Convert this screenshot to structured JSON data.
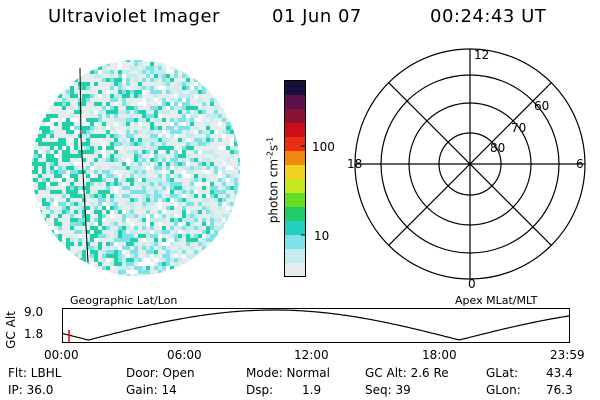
{
  "header": {
    "instrument": "Ultraviolet Imager",
    "date": "01 Jun 07",
    "time": "00:24:43 UT"
  },
  "colorbar": {
    "unit_label": "photon cm",
    "unit_exp1": "-2",
    "unit_s": "s",
    "unit_exp2": "-1",
    "ticks": [
      "100",
      "10"
    ],
    "colors": [
      "#1a0f3a",
      "#5a0f4a",
      "#8c1232",
      "#cc0f1a",
      "#e83010",
      "#f08810",
      "#f0d020",
      "#c8e820",
      "#66dd22",
      "#22cc66",
      "#22d0c0",
      "#7ee2e8",
      "#c2ecee",
      "#e6eded"
    ]
  },
  "polar": {
    "top_label": "12",
    "bottom_label": "0",
    "left_label": "18",
    "right_label": "6",
    "rings": [
      "60",
      "70",
      "80"
    ]
  },
  "captions": {
    "left": "Geographic Lat/Lon",
    "right": "Apex MLat/MLT"
  },
  "altplot": {
    "ylabel": "GC Alt",
    "yticks": [
      "9.0",
      "1.8"
    ],
    "xticks": [
      "00:00",
      "06:00",
      "12:00",
      "18:00",
      "23:59"
    ]
  },
  "footer": {
    "flt": "Flt: LBHL",
    "ip": "IP: 36.0",
    "door": "Door: Open",
    "gain": "Gain: 14",
    "mode": "Mode: Normal",
    "dsp_label": "Dsp:",
    "dsp_value": "1.9",
    "gcalt": "GC Alt: 2.6 Re",
    "seq": "Seq: 39",
    "glat_label": "GLat:",
    "glat_value": "43.4",
    "glon_label": "GLon:",
    "glon_value": "76.3"
  }
}
